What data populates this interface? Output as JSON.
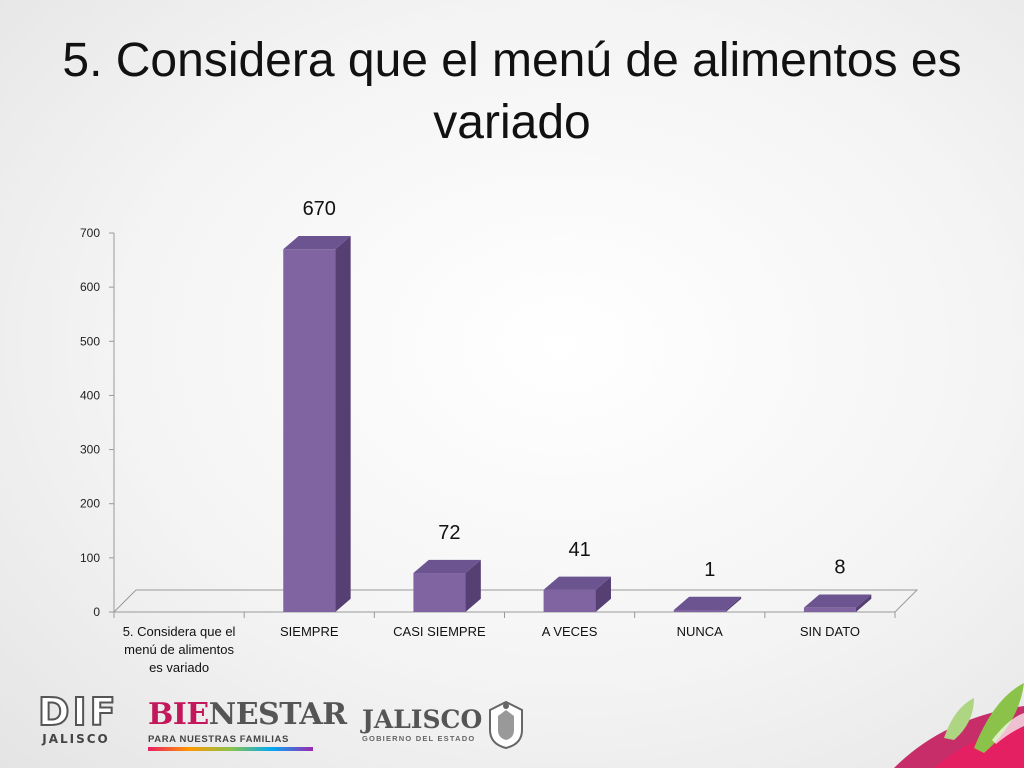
{
  "title": "5. Considera que el menú de alimentos es variado",
  "chart_data": {
    "type": "bar",
    "title": "",
    "xlabel": "",
    "ylabel": "",
    "ylim": [
      0,
      700
    ],
    "yticks": [
      "0",
      "100",
      "200",
      "300",
      "400",
      "500",
      "600",
      "700"
    ],
    "categories": [
      "5. Considera que el menú de alimentos es variado",
      "SIEMPRE",
      "CASI SIEMPRE",
      "A VECES",
      "NUNCA",
      "SIN DATO"
    ],
    "category_lines": [
      [
        "5. Considera que el",
        "menú de alimentos",
        "es variado"
      ],
      [
        "SIEMPRE"
      ],
      [
        "CASI SIEMPRE"
      ],
      [
        "A VECES"
      ],
      [
        "NUNCA"
      ],
      [
        "SIN DATO"
      ]
    ],
    "values": [
      null,
      670,
      72,
      41,
      1,
      8
    ],
    "data_labels": [
      "",
      "670",
      "72",
      "41",
      "1",
      "8"
    ],
    "bar_color": "#8064a2",
    "bar_side_color": "#553f73",
    "bar_top_color": "#6c5490",
    "grid": false,
    "style": "3d-column"
  },
  "footer": {
    "dif": {
      "big": "DIF",
      "small": "JALISCO"
    },
    "bienestar": {
      "big_start": "BIE",
      "big_end": "NESTAR",
      "small": "PARA NUESTRAS FAMILIAS"
    },
    "jalisco": {
      "big": "JALISCO",
      "small": "GOBIERNO DEL ESTADO"
    }
  }
}
